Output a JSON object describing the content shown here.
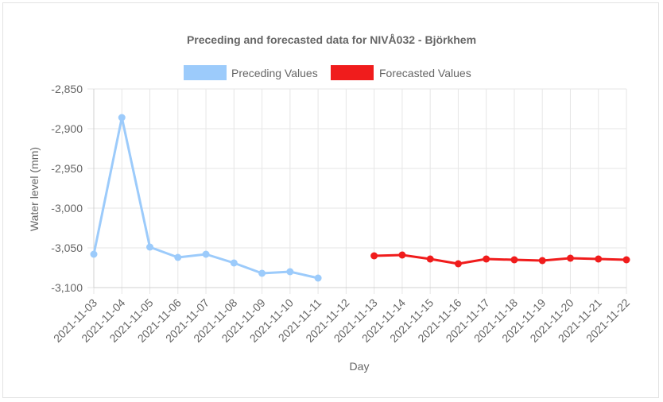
{
  "chart_data": {
    "type": "line",
    "title": "Preceding and forecasted data for NIVÅ032 - Björkhem",
    "xlabel": "Day",
    "ylabel": "Water level (mm)",
    "ylim": [
      -3100,
      -2850
    ],
    "yticks": [
      -2850,
      -2900,
      -2950,
      -3000,
      -3050,
      -3100
    ],
    "ytick_labels": [
      "-2,850",
      "-2,900",
      "-2,950",
      "-3,000",
      "-3,050",
      "-3,100"
    ],
    "grid": true,
    "legend_position": "top",
    "categories": [
      "2021-11-03",
      "2021-11-04",
      "2021-11-05",
      "2021-11-06",
      "2021-11-07",
      "2021-11-08",
      "2021-11-09",
      "2021-11-10",
      "2021-11-11",
      "2021-11-12",
      "2021-11-13",
      "2021-11-14",
      "2021-11-15",
      "2021-11-16",
      "2021-11-17",
      "2021-11-18",
      "2021-11-19",
      "2021-11-20",
      "2021-11-21",
      "2021-11-22"
    ],
    "series": [
      {
        "name": "Preceding Values",
        "color": "#9ccbfb",
        "values": [
          -3058,
          -2886,
          -3049,
          -3062,
          -3058,
          -3069,
          -3082,
          -3080,
          -3088,
          null,
          null,
          null,
          null,
          null,
          null,
          null,
          null,
          null,
          null,
          null
        ]
      },
      {
        "name": "Forecasted Values",
        "color": "#f01c1c",
        "values": [
          null,
          null,
          null,
          null,
          null,
          null,
          null,
          null,
          null,
          null,
          -3060,
          -3059,
          -3064,
          -3070,
          -3064,
          -3065,
          -3066,
          -3063,
          -3064,
          -3065
        ]
      }
    ]
  }
}
